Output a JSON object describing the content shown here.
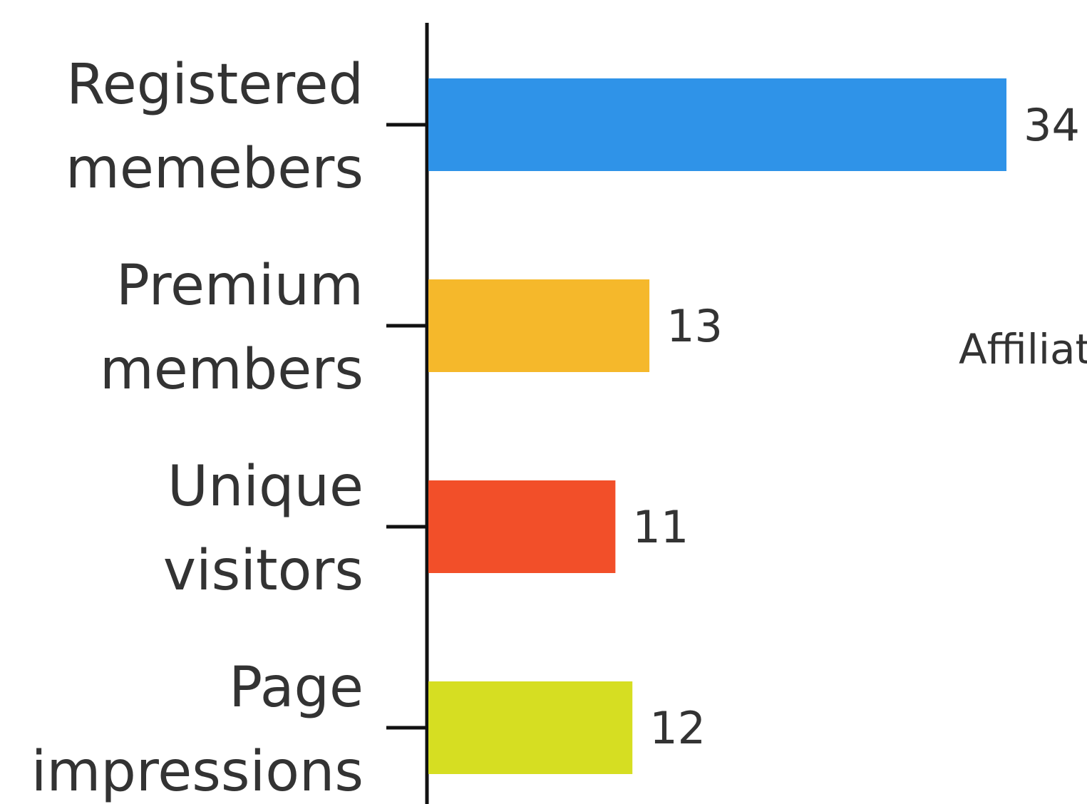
{
  "chart_data": {
    "type": "bar",
    "orientation": "horizontal",
    "categories": [
      [
        "Registered",
        "memebers"
      ],
      [
        "Premium",
        "members"
      ],
      [
        "Unique",
        "visitors"
      ],
      [
        "Page",
        "impressions"
      ]
    ],
    "values": [
      34,
      13,
      11,
      12
    ],
    "colors": [
      "#2f93e8",
      "#f5b82b",
      "#f24f29",
      "#d6de22"
    ],
    "value_labels": [
      "34",
      "13",
      "11",
      "12"
    ],
    "annotation": "Affiliat",
    "grid": false,
    "xlim": [
      0,
      34
    ]
  }
}
